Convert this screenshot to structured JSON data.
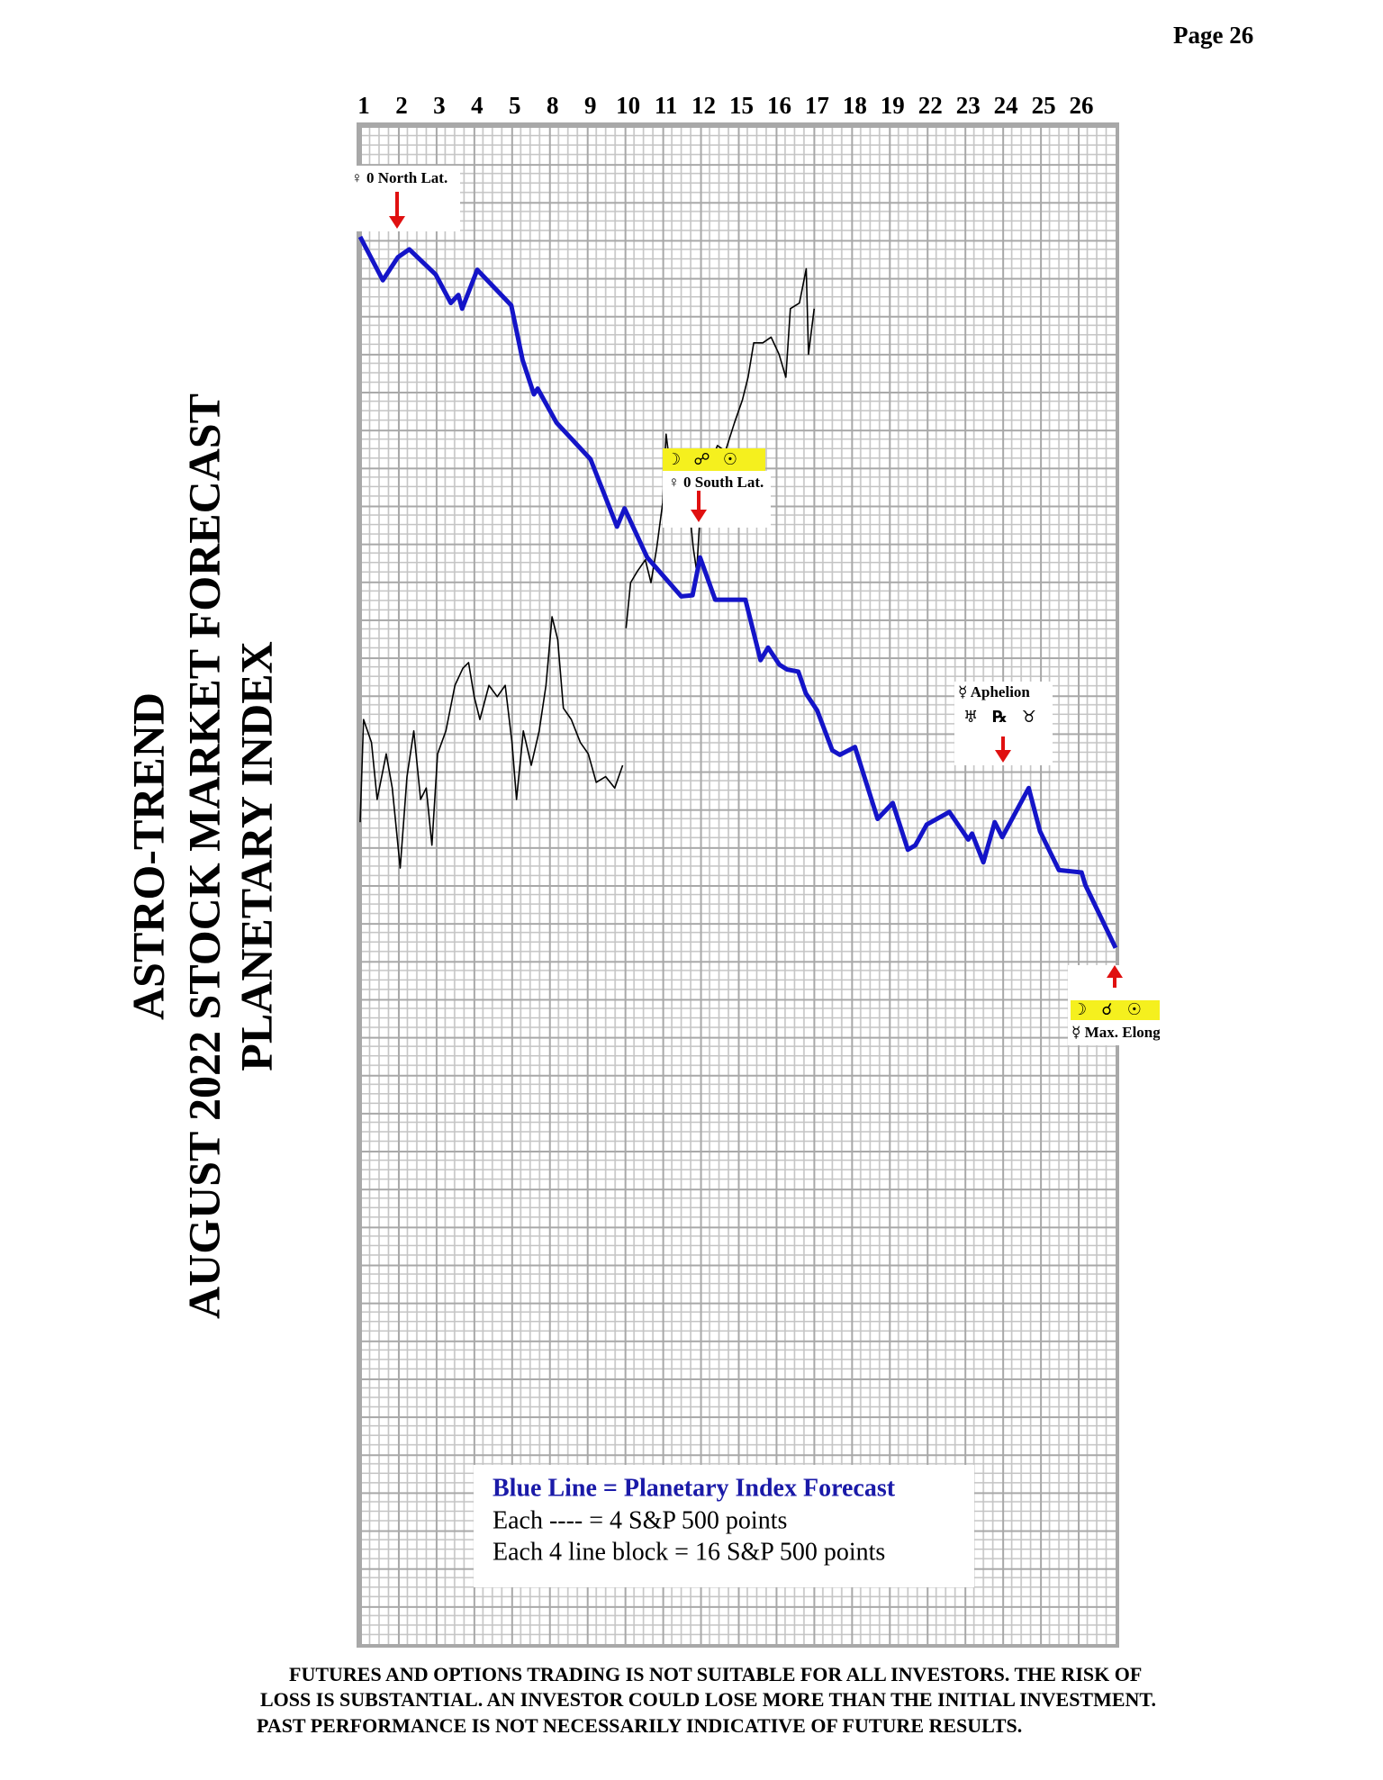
{
  "page": "Page  26",
  "chart_data": {
    "type": "line",
    "title": [
      "ASTRO-TREND",
      "AUGUST 2022  STOCK MARKET FORECAST",
      "PLANETARY INDEX"
    ],
    "xlim": [
      0,
      20
    ],
    "xticks": [
      {
        "value": 0,
        "label": "1"
      },
      {
        "value": 1,
        "label": "2"
      },
      {
        "value": 2,
        "label": "3"
      },
      {
        "value": 3,
        "label": "4"
      },
      {
        "value": 4,
        "label": "5"
      },
      {
        "value": 5,
        "label": "8"
      },
      {
        "value": 6,
        "label": "9"
      },
      {
        "value": 7,
        "label": "10"
      },
      {
        "value": 8,
        "label": "11"
      },
      {
        "value": 9,
        "label": "12"
      },
      {
        "value": 10,
        "label": "15"
      },
      {
        "value": 11,
        "label": "16"
      },
      {
        "value": 12,
        "label": "17"
      },
      {
        "value": 13,
        "label": "18"
      },
      {
        "value": 14,
        "label": "19"
      },
      {
        "value": 15,
        "label": "22"
      },
      {
        "value": 16,
        "label": "23"
      },
      {
        "value": 17,
        "label": "24"
      },
      {
        "value": 18,
        "label": "25"
      },
      {
        "value": 19,
        "label": "26"
      }
    ],
    "ylim": [
      0,
      640
    ],
    "grid": true,
    "series": [
      {
        "color": "#1414c8",
        "x": [
          0,
          0.6,
          1.0,
          1.3,
          2.0,
          2.4,
          2.6,
          2.7,
          3.1,
          4.0,
          4.3,
          4.6,
          4.7,
          5.2,
          6.1,
          6.8,
          7.0,
          7.6,
          8.5,
          8.8,
          9.0,
          9.4,
          10.2,
          10.6,
          10.8,
          11.1,
          11.3,
          11.6,
          11.8,
          12.1,
          12.5,
          12.7,
          13.1,
          13.7,
          14.1,
          14.5,
          14.7,
          15.0,
          15.6,
          16.1,
          16.2,
          16.5,
          16.8,
          17.0,
          17.7,
          18.0,
          18.5,
          19.1,
          19.2,
          20.0
        ],
        "values": [
          593.3,
          575.0,
          584.7,
          588.0,
          577.4,
          565.4,
          568.8,
          563.0,
          579.4,
          564.4,
          541.4,
          526.9,
          529.3,
          514.9,
          499.5,
          471.1,
          478.8,
          458.1,
          441.7,
          442.2,
          458.1,
          440.3,
          440.3,
          414.8,
          420.1,
          412.9,
          410.9,
          410.0,
          400.8,
          393.6,
          376.8,
          374.9,
          378.2,
          347.9,
          354.6,
          334.9,
          336.8,
          345.5,
          350.8,
          339.2,
          341.7,
          329.6,
          346.5,
          340.2,
          360.9,
          342.6,
          326.3,
          325.3,
          320.0,
          293.5
        ]
      },
      {
        "color": "#000000",
        "x": [
          0,
          0.09,
          0.3,
          0.45,
          0.69,
          0.85,
          1.06,
          1.24,
          1.42,
          1.6,
          1.75,
          1.9,
          2.05,
          2.27,
          2.51,
          2.72,
          2.87,
          3.02,
          3.17,
          3.41,
          3.63,
          3.84,
          4.02,
          4.14,
          4.32,
          4.53,
          4.74,
          4.92,
          5.08,
          5.23,
          5.38,
          5.59,
          5.83,
          6.04,
          6.25,
          6.5,
          6.74,
          6.95,
          7.0,
          7.04,
          7.16,
          7.34,
          7.55,
          7.7,
          7.85,
          8.01,
          8.1,
          8.25,
          8.37,
          8.49,
          8.67,
          8.82,
          8.91,
          9.0,
          9.21,
          9.46,
          9.67,
          9.91,
          10.12,
          10.27,
          10.42,
          10.66,
          10.88,
          11.09,
          11.27,
          11.39,
          11.63,
          11.81,
          11.87,
          12.02
        ],
        "values": [
          346.5,
          389.8,
          380.1,
          356.1,
          375.3,
          360.9,
          327.2,
          365.7,
          385.0,
          356.1,
          360.9,
          336.8,
          375.3,
          385.0,
          404.2,
          411.4,
          413.8,
          399.4,
          389.8,
          404.2,
          399.4,
          404.2,
          380.1,
          356.1,
          385.0,
          370.5,
          385.0,
          404.2,
          433.1,
          423.5,
          394.6,
          389.8,
          380.1,
          375.3,
          363.3,
          365.7,
          360.9,
          370.5,
          null,
          428.3,
          447.5,
          452.3,
          457.1,
          447.5,
          462.0,
          481.2,
          510.1,
          490.8,
          500.4,
          476.4,
          486.0,
          462.0,
          452.3,
          476.4,
          495.6,
          505.3,
          502.9,
          514.9,
          524.5,
          534.1,
          548.6,
          548.6,
          551.0,
          543.8,
          534.1,
          563.0,
          565.4,
          579.8,
          543.8,
          563.0
        ]
      }
    ],
    "annotations": [
      {
        "lines": [
          "♀ 0 North Lat."
        ]
      },
      {
        "lines": [
          "☽ ☍ ☉",
          "♀ 0 South Lat."
        ]
      },
      {
        "lines": [
          "☿ Aphelion",
          "♅ ℞ ♉"
        ]
      },
      {
        "lines": [
          "☽ ☌ ☉",
          "☿ Max. Elong"
        ]
      }
    ],
    "legend_note": [
      "Blue Line = Planetary Index Forecast",
      "Each ---- =   4 S&P 500 points",
      "Each 4 line block =  16  S&P 500 points"
    ]
  },
  "disclaimer": [
    "FUTURES AND OPTIONS TRADING IS NOT SUITABLE FOR ALL INVESTORS.  THE RISK OF",
    "LOSS IS SUBSTANTIAL.  AN INVESTOR COULD LOSE MORE THAN THE INITIAL INVESTMENT.",
    "PAST PERFORMANCE IS NOT NECESSARILY INDICATIVE OF FUTURE RESULTS."
  ]
}
